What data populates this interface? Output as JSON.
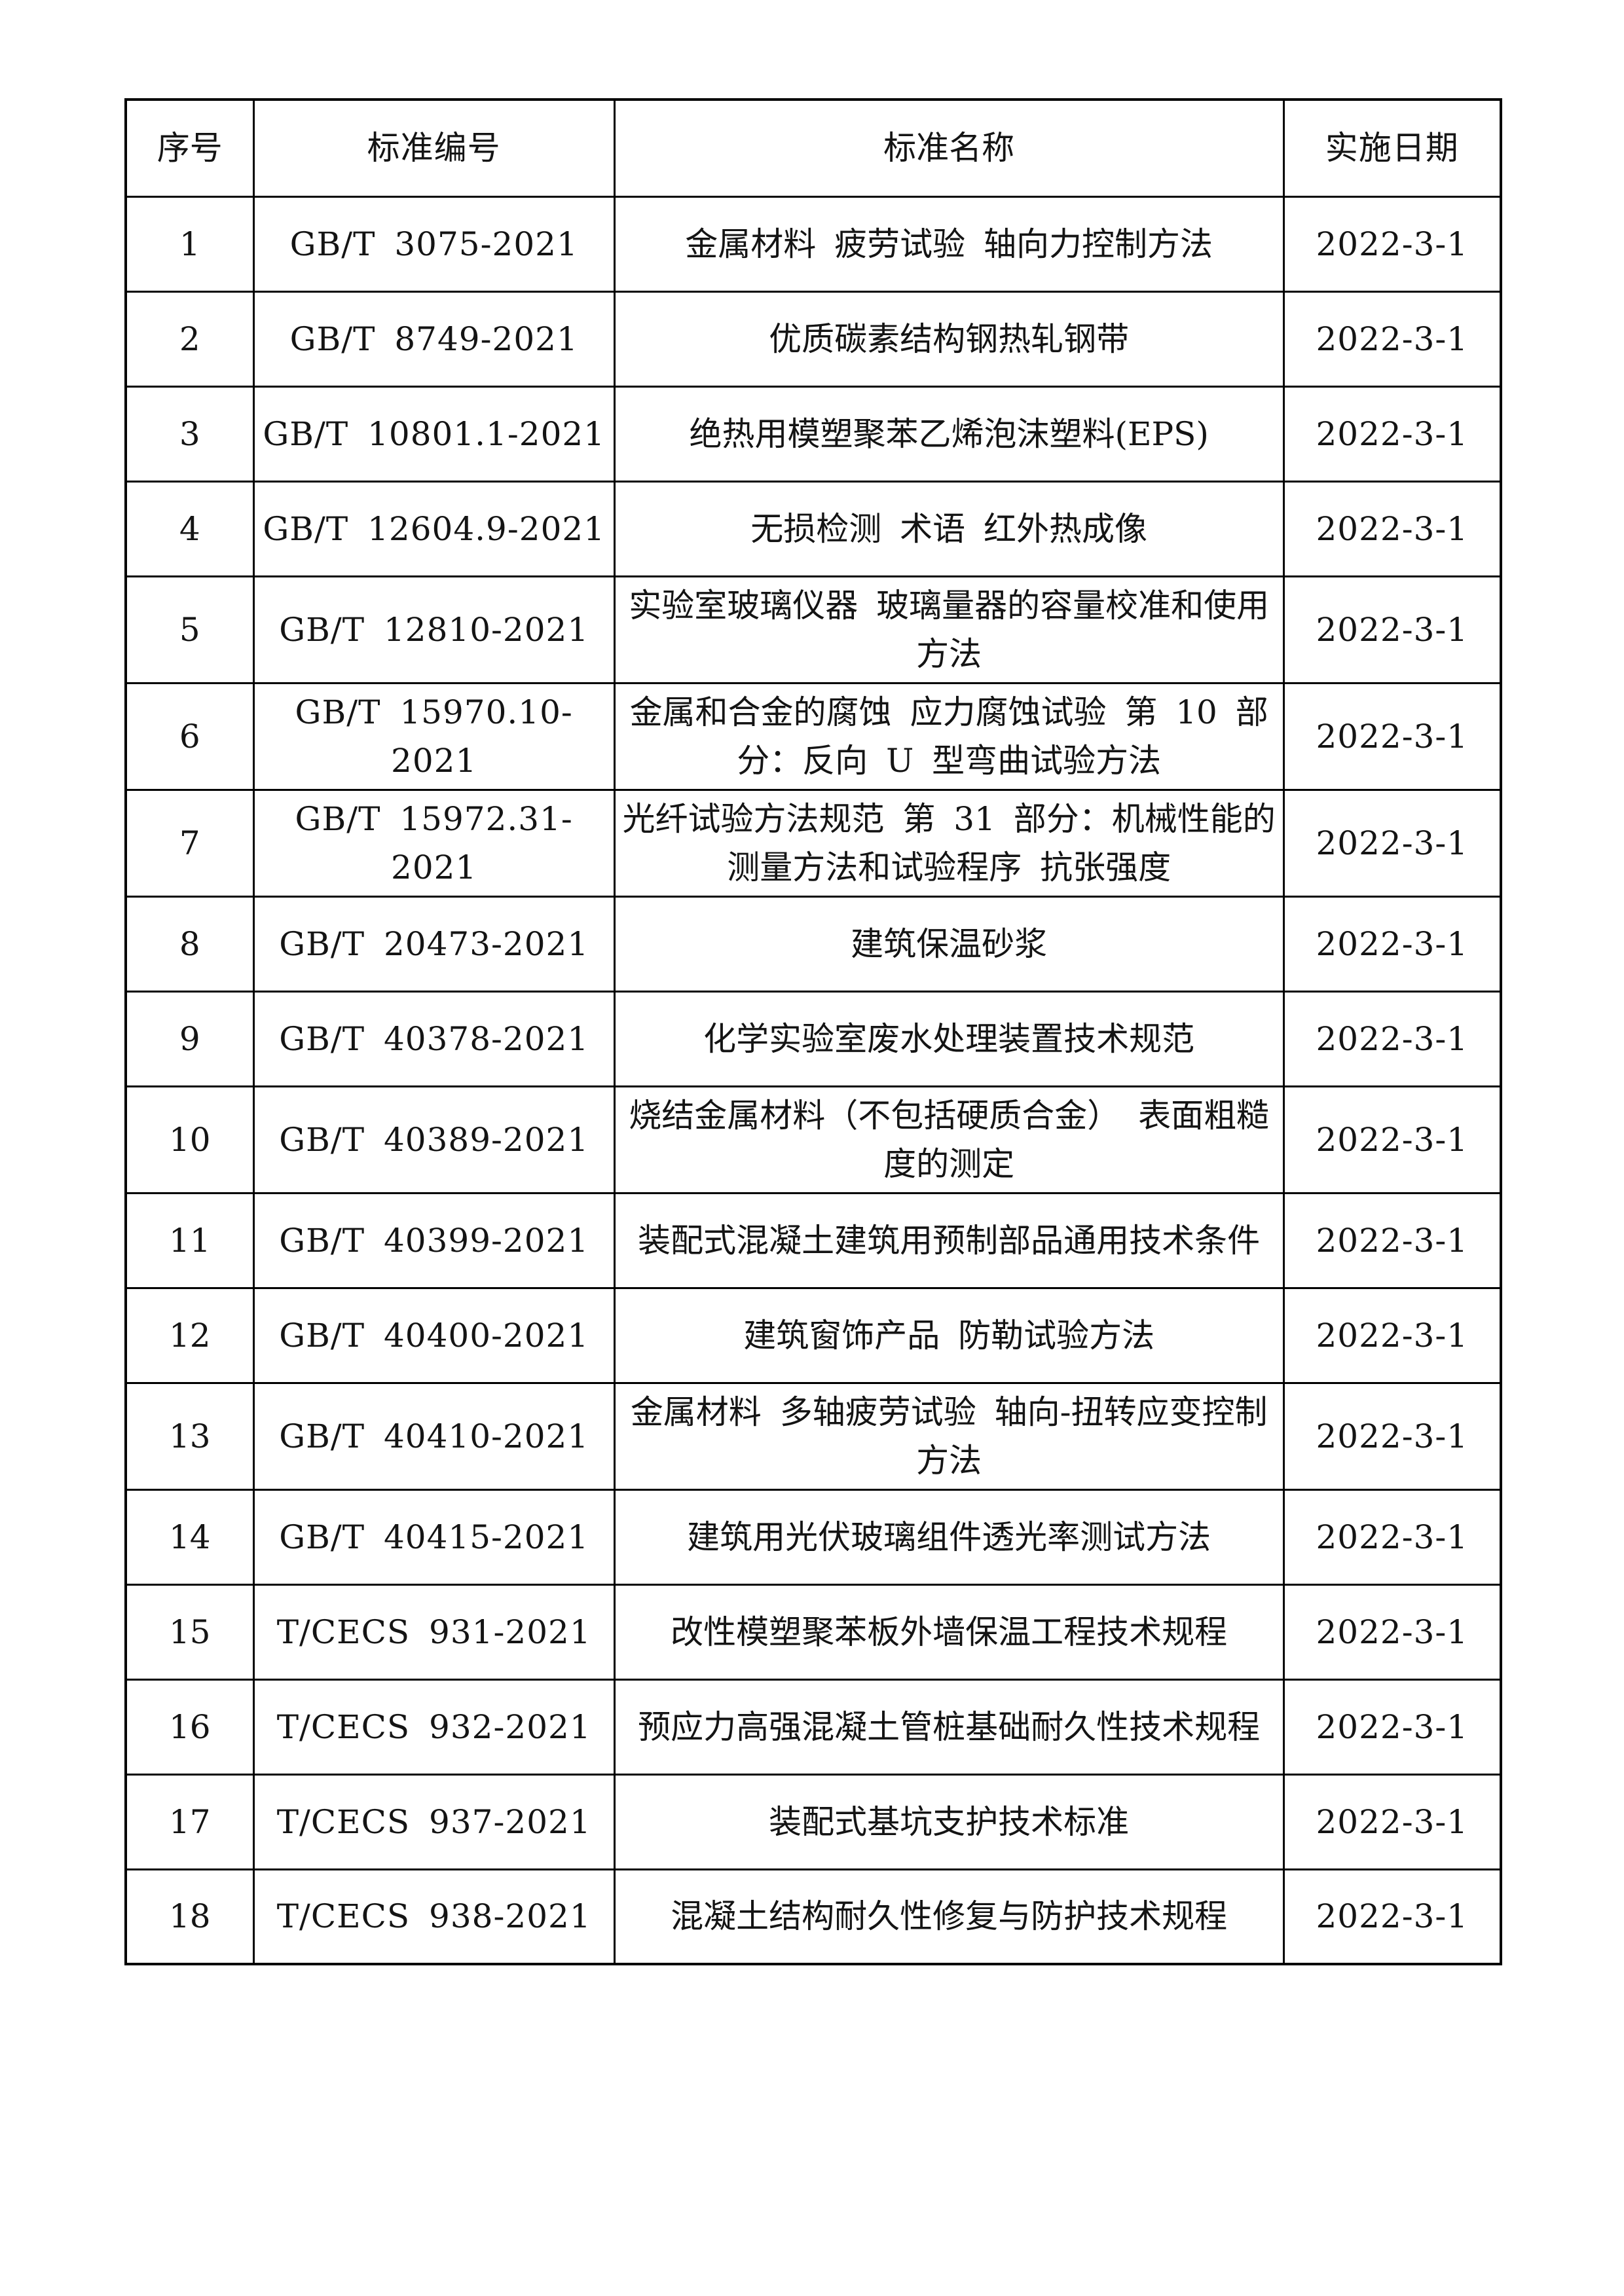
{
  "page": {
    "background_color": "#ffffff",
    "text_color": "#141414",
    "border_color": "#000000"
  },
  "table": {
    "headers": [
      "序号",
      "标准编号",
      "标准名称",
      "实施日期"
    ],
    "rows": [
      {
        "no": "1",
        "code": "GB/T 3075-2021",
        "name": "金属材料 疲劳试验 轴向力控制方法",
        "date": "2022-3-1"
      },
      {
        "no": "2",
        "code": "GB/T 8749-2021",
        "name": "优质碳素结构钢热轧钢带",
        "date": "2022-3-1"
      },
      {
        "no": "3",
        "code": "GB/T 10801.1-2021",
        "name": "绝热用模塑聚苯乙烯泡沫塑料(EPS)",
        "date": "2022-3-1"
      },
      {
        "no": "4",
        "code": "GB/T 12604.9-2021",
        "name": "无损检测 术语 红外热成像",
        "date": "2022-3-1"
      },
      {
        "no": "5",
        "code": "GB/T 12810-2021",
        "name": "实验室玻璃仪器 玻璃量器的容量校准和使用方法",
        "date": "2022-3-1"
      },
      {
        "no": "6",
        "code": "GB/T 15970.10-2021",
        "name": "金属和合金的腐蚀 应力腐蚀试验 第 10 部分：反向 U 型弯曲试验方法",
        "date": "2022-3-1"
      },
      {
        "no": "7",
        "code": "GB/T 15972.31-2021",
        "name": "光纤试验方法规范 第 31 部分：机械性能的测量方法和试验程序 抗张强度",
        "date": "2022-3-1"
      },
      {
        "no": "8",
        "code": "GB/T 20473-2021",
        "name": "建筑保温砂浆",
        "date": "2022-3-1"
      },
      {
        "no": "9",
        "code": "GB/T 40378-2021",
        "name": "化学实验室废水处理装置技术规范",
        "date": "2022-3-1"
      },
      {
        "no": "10",
        "code": "GB/T 40389-2021",
        "name": "烧结金属材料（不包括硬质合金） 表面粗糙度的测定",
        "date": "2022-3-1"
      },
      {
        "no": "11",
        "code": "GB/T 40399-2021",
        "name": "装配式混凝土建筑用预制部品通用技术条件",
        "date": "2022-3-1"
      },
      {
        "no": "12",
        "code": "GB/T 40400-2021",
        "name": "建筑窗饰产品 防勒试验方法",
        "date": "2022-3-1"
      },
      {
        "no": "13",
        "code": "GB/T 40410-2021",
        "name": "金属材料 多轴疲劳试验 轴向-扭转应变控制方法",
        "date": "2022-3-1"
      },
      {
        "no": "14",
        "code": "GB/T 40415-2021",
        "name": "建筑用光伏玻璃组件透光率测试方法",
        "date": "2022-3-1"
      },
      {
        "no": "15",
        "code": "T/CECS 931-2021",
        "name": "改性模塑聚苯板外墙保温工程技术规程",
        "date": "2022-3-1"
      },
      {
        "no": "16",
        "code": "T/CECS 932-2021",
        "name": "预应力高强混凝土管桩基础耐久性技术规程",
        "date": "2022-3-1"
      },
      {
        "no": "17",
        "code": "T/CECS 937-2021",
        "name": "装配式基坑支护技术标准",
        "date": "2022-3-1"
      },
      {
        "no": "18",
        "code": "T/CECS 938-2021",
        "name": "混凝土结构耐久性修复与防护技术规程",
        "date": "2022-3-1"
      }
    ]
  }
}
